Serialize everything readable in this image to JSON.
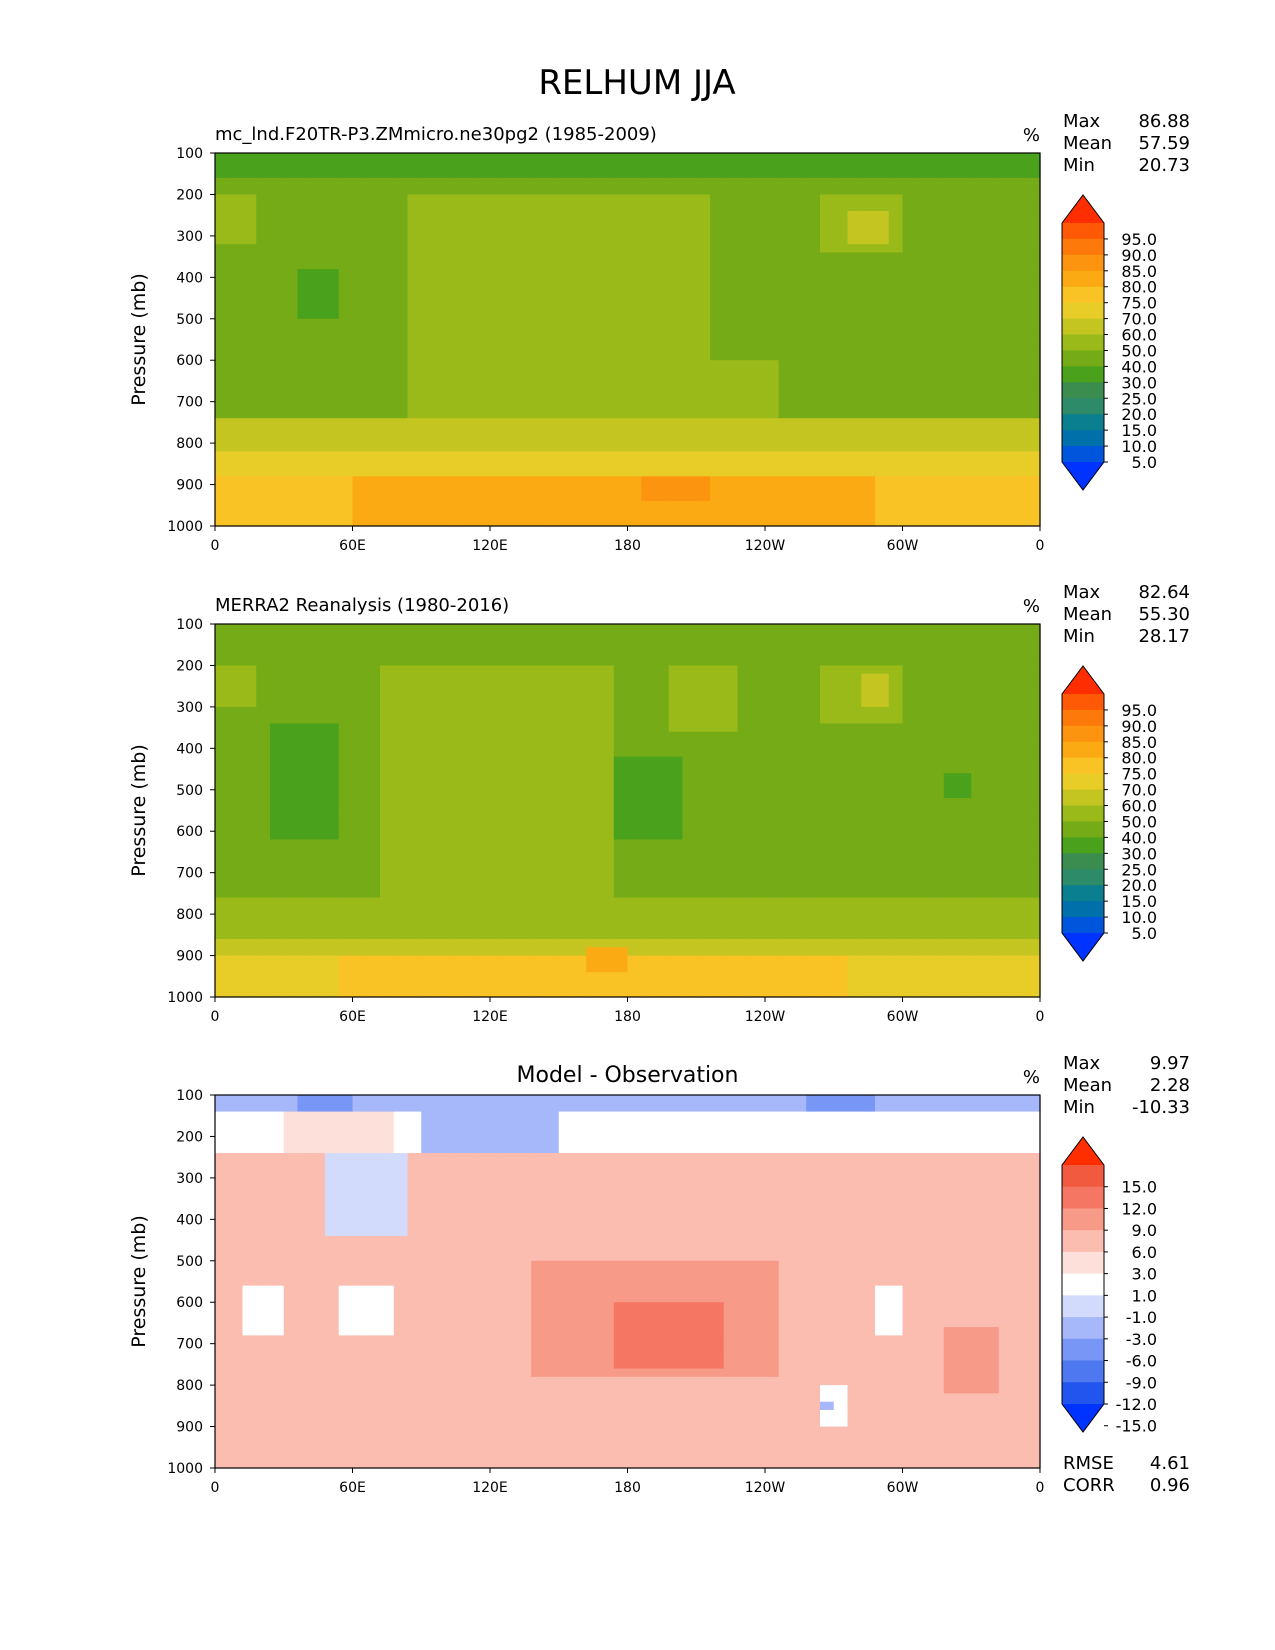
{
  "figure": {
    "title": "RELHUM JJA"
  },
  "colors": {
    "rh_levels": [
      "#0033ff",
      "#0055dd",
      "#0070aa",
      "#0a7f90",
      "#2e8b6a",
      "#3a8c4f",
      "#4aa21c",
      "#74ab16",
      "#9aba1a",
      "#c4c520",
      "#e8cd28",
      "#f9c225",
      "#fcaa14",
      "#fc9410",
      "#fd7a0a",
      "#fe5a05",
      "#ff2e00"
    ],
    "diff_levels": [
      "#0033ff",
      "#2255ee",
      "#4d78ef",
      "#7896f5",
      "#a6b7fa",
      "#d3dbfc",
      "#ffffff",
      "#fde0da",
      "#fcbdb1",
      "#f89a88",
      "#f57663",
      "#f25a40",
      "#ff2e00"
    ]
  },
  "chart_data": [
    {
      "type": "heatmap",
      "name": "model",
      "title": "mc_lnd.F20TR-P3.ZMmicro.ne30pg2 (1985-2009)",
      "units": "%",
      "ylabel": "Pressure (mb)",
      "xticks": [
        "0",
        "60E",
        "120E",
        "180",
        "120W",
        "60W",
        "0"
      ],
      "yticks": [
        "100",
        "200",
        "300",
        "400",
        "500",
        "600",
        "700",
        "800",
        "900",
        "1000"
      ],
      "xlim": [
        0,
        360
      ],
      "ylim": [
        1000,
        100
      ],
      "stats": [
        {
          "label": "Max",
          "value": "86.88"
        },
        {
          "label": "Mean",
          "value": "57.59"
        },
        {
          "label": "Min",
          "value": "20.73"
        }
      ],
      "colorbar": [
        "95.0",
        "90.0",
        "85.0",
        "80.0",
        "75.0",
        "70.0",
        "60.0",
        "50.0",
        "40.0",
        "30.0",
        "25.0",
        "20.0",
        "15.0",
        "10.0",
        "5.0"
      ]
    },
    {
      "type": "heatmap",
      "name": "obs",
      "title": "MERRA2 Reanalysis (1980-2016)",
      "units": "%",
      "ylabel": "Pressure (mb)",
      "xticks": [
        "0",
        "60E",
        "120E",
        "180",
        "120W",
        "60W",
        "0"
      ],
      "yticks": [
        "100",
        "200",
        "300",
        "400",
        "500",
        "600",
        "700",
        "800",
        "900",
        "1000"
      ],
      "xlim": [
        0,
        360
      ],
      "ylim": [
        1000,
        100
      ],
      "stats": [
        {
          "label": "Max",
          "value": "82.64"
        },
        {
          "label": "Mean",
          "value": "55.30"
        },
        {
          "label": "Min",
          "value": "28.17"
        }
      ],
      "colorbar": [
        "95.0",
        "90.0",
        "85.0",
        "80.0",
        "75.0",
        "70.0",
        "60.0",
        "50.0",
        "40.0",
        "30.0",
        "25.0",
        "20.0",
        "15.0",
        "10.0",
        "5.0"
      ]
    },
    {
      "type": "heatmap",
      "name": "diff",
      "title": "Model - Observation",
      "units": "%",
      "ylabel": "Pressure (mb)",
      "xticks": [
        "0",
        "60E",
        "120E",
        "180",
        "120W",
        "60W",
        "0"
      ],
      "yticks": [
        "100",
        "200",
        "300",
        "400",
        "500",
        "600",
        "700",
        "800",
        "900",
        "1000"
      ],
      "xlim": [
        0,
        360
      ],
      "ylim": [
        1000,
        100
      ],
      "stats": [
        {
          "label": "Max",
          "value": "9.97"
        },
        {
          "label": "Mean",
          "value": "2.28"
        },
        {
          "label": "Min",
          "value": "-10.33"
        }
      ],
      "colorbar": [
        "15.0",
        "12.0",
        "9.0",
        "6.0",
        "3.0",
        "1.0",
        "-1.0",
        "-3.0",
        "-6.0",
        "-9.0",
        "-12.0",
        "-15.0"
      ],
      "extra_stats": [
        {
          "label": "RMSE",
          "value": "4.61"
        },
        {
          "label": "CORR",
          "value": "0.96"
        }
      ]
    }
  ]
}
